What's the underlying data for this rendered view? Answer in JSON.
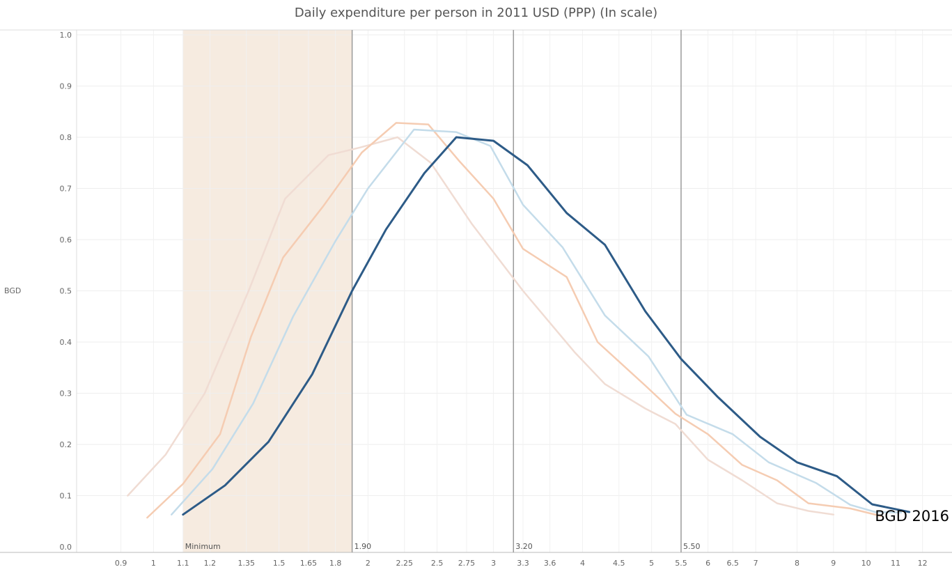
{
  "chart_data": {
    "type": "line",
    "title": "Daily expenditure per person in 2011 USD (PPP) (In scale)",
    "ylabel": "BGD",
    "xlabel": "",
    "x_scale": "log",
    "xlim": [
      0.78,
      13.2
    ],
    "ylim": [
      0,
      1.0
    ],
    "x_ticks": [
      {
        "value": 0.9,
        "label": "0.9"
      },
      {
        "value": 1,
        "label": "1"
      },
      {
        "value": 1.1,
        "label": "1.1"
      },
      {
        "value": 1.2,
        "label": "1.2"
      },
      {
        "value": 1.35,
        "label": "1.35"
      },
      {
        "value": 1.5,
        "label": "1.5"
      },
      {
        "value": 1.65,
        "label": "1.65"
      },
      {
        "value": 1.8,
        "label": "1.8"
      },
      {
        "value": 2,
        "label": "2"
      },
      {
        "value": 2.25,
        "label": "2.25"
      },
      {
        "value": 2.5,
        "label": "2.5"
      },
      {
        "value": 2.75,
        "label": "2.75"
      },
      {
        "value": 3,
        "label": "3"
      },
      {
        "value": 3.3,
        "label": "3.3"
      },
      {
        "value": 3.6,
        "label": "3.6"
      },
      {
        "value": 4,
        "label": "4"
      },
      {
        "value": 4.5,
        "label": "4.5"
      },
      {
        "value": 5,
        "label": "5"
      },
      {
        "value": 5.5,
        "label": "5.5"
      },
      {
        "value": 6,
        "label": "6"
      },
      {
        "value": 6.5,
        "label": "6.5"
      },
      {
        "value": 7,
        "label": "7"
      },
      {
        "value": 8,
        "label": "8"
      },
      {
        "value": 9,
        "label": "9"
      },
      {
        "value": 10,
        "label": "10"
      },
      {
        "value": 11,
        "label": "11"
      },
      {
        "value": 12,
        "label": "12"
      }
    ],
    "y_ticks": [
      {
        "value": 0.0,
        "label": "0.0"
      },
      {
        "value": 0.1,
        "label": "0.1"
      },
      {
        "value": 0.2,
        "label": "0.2"
      },
      {
        "value": 0.3,
        "label": "0.3"
      },
      {
        "value": 0.4,
        "label": "0.4"
      },
      {
        "value": 0.5,
        "label": "0.5"
      },
      {
        "value": 0.6,
        "label": "0.6"
      },
      {
        "value": 0.7,
        "label": "0.7"
      },
      {
        "value": 0.8,
        "label": "0.8"
      },
      {
        "value": 0.9,
        "label": "0.9"
      },
      {
        "value": 1.0,
        "label": "1.0"
      }
    ],
    "grid": true,
    "shaded_band": {
      "from": 1.1,
      "to": 1.9,
      "label": "Minimum",
      "color": "#f6ebe0"
    },
    "reference_lines": [
      {
        "x": 1.9,
        "label": "1.90"
      },
      {
        "x": 3.2,
        "label": "3.20"
      },
      {
        "x": 5.5,
        "label": "5.50"
      }
    ],
    "end_label": "BGD 2016",
    "series": [
      {
        "color": "#f0dcd3",
        "width": 2.5,
        "points": [
          [
            0.92,
            0.1
          ],
          [
            1.04,
            0.18
          ],
          [
            1.18,
            0.3
          ],
          [
            1.36,
            0.5
          ],
          [
            1.53,
            0.68
          ],
          [
            1.76,
            0.765
          ],
          [
            1.95,
            0.78
          ],
          [
            2.2,
            0.8
          ],
          [
            2.45,
            0.75
          ],
          [
            2.8,
            0.63
          ],
          [
            3.3,
            0.5
          ],
          [
            3.9,
            0.38
          ],
          [
            4.3,
            0.318
          ],
          [
            4.9,
            0.27
          ],
          [
            5.4,
            0.24
          ],
          [
            6.0,
            0.17
          ],
          [
            6.7,
            0.13
          ],
          [
            7.5,
            0.085
          ],
          [
            8.3,
            0.07
          ],
          [
            9.0,
            0.063
          ]
        ]
      },
      {
        "color": "#f5ccb2",
        "width": 2.5,
        "points": [
          [
            0.98,
            0.057
          ],
          [
            1.1,
            0.123
          ],
          [
            1.24,
            0.22
          ],
          [
            1.37,
            0.41
          ],
          [
            1.52,
            0.565
          ],
          [
            1.73,
            0.665
          ],
          [
            1.96,
            0.77
          ],
          [
            2.19,
            0.828
          ],
          [
            2.43,
            0.825
          ],
          [
            2.68,
            0.755
          ],
          [
            3.0,
            0.68
          ],
          [
            3.3,
            0.582
          ],
          [
            3.8,
            0.527
          ],
          [
            4.2,
            0.4
          ],
          [
            4.9,
            0.315
          ],
          [
            5.4,
            0.26
          ],
          [
            6.0,
            0.22
          ],
          [
            6.7,
            0.16
          ],
          [
            7.5,
            0.13
          ],
          [
            8.3,
            0.085
          ],
          [
            9.5,
            0.075
          ],
          [
            10.5,
            0.06
          ]
        ]
      },
      {
        "color": "#c4dcea",
        "width": 2.5,
        "points": [
          [
            1.06,
            0.063
          ],
          [
            1.21,
            0.152
          ],
          [
            1.38,
            0.28
          ],
          [
            1.57,
            0.45
          ],
          [
            1.8,
            0.597
          ],
          [
            2.0,
            0.7
          ],
          [
            2.32,
            0.815
          ],
          [
            2.66,
            0.81
          ],
          [
            2.97,
            0.783
          ],
          [
            3.3,
            0.668
          ],
          [
            3.75,
            0.585
          ],
          [
            4.3,
            0.452
          ],
          [
            4.95,
            0.372
          ],
          [
            5.6,
            0.258
          ],
          [
            6.5,
            0.22
          ],
          [
            7.3,
            0.165
          ],
          [
            8.5,
            0.125
          ],
          [
            9.5,
            0.082
          ],
          [
            10.3,
            0.068
          ],
          [
            11.2,
            0.067
          ]
        ]
      },
      {
        "color": "#2d5b87",
        "width": 3,
        "points": [
          [
            1.1,
            0.063
          ],
          [
            1.26,
            0.12
          ],
          [
            1.45,
            0.205
          ],
          [
            1.67,
            0.337
          ],
          [
            1.9,
            0.5
          ],
          [
            2.12,
            0.62
          ],
          [
            2.4,
            0.73
          ],
          [
            2.66,
            0.8
          ],
          [
            3.0,
            0.793
          ],
          [
            3.35,
            0.745
          ],
          [
            3.8,
            0.652
          ],
          [
            4.3,
            0.59
          ],
          [
            4.9,
            0.46
          ],
          [
            5.5,
            0.367
          ],
          [
            6.2,
            0.292
          ],
          [
            7.1,
            0.215
          ],
          [
            8.0,
            0.165
          ],
          [
            9.1,
            0.138
          ],
          [
            10.2,
            0.083
          ],
          [
            11.5,
            0.068
          ]
        ]
      }
    ]
  }
}
